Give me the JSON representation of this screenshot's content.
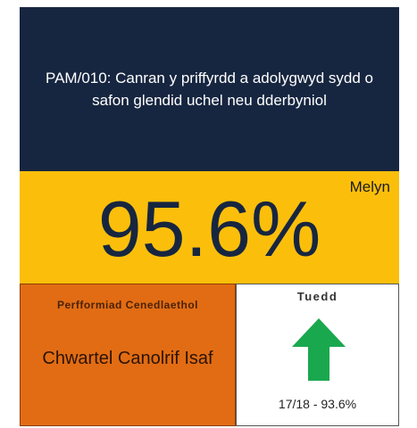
{
  "header": {
    "title": "PAM/010: Canran y priffyrdd a adolygwyd sydd o safon glendid uchel neu dderbyniol"
  },
  "score": {
    "status": "Melyn",
    "value": "95.6%"
  },
  "national": {
    "label": "Perfformiad Cenedlaethol",
    "value": "Chwartel Canolrif Isaf"
  },
  "trend": {
    "label": "Tuedd",
    "value": "17/18 - 93.6%"
  }
}
